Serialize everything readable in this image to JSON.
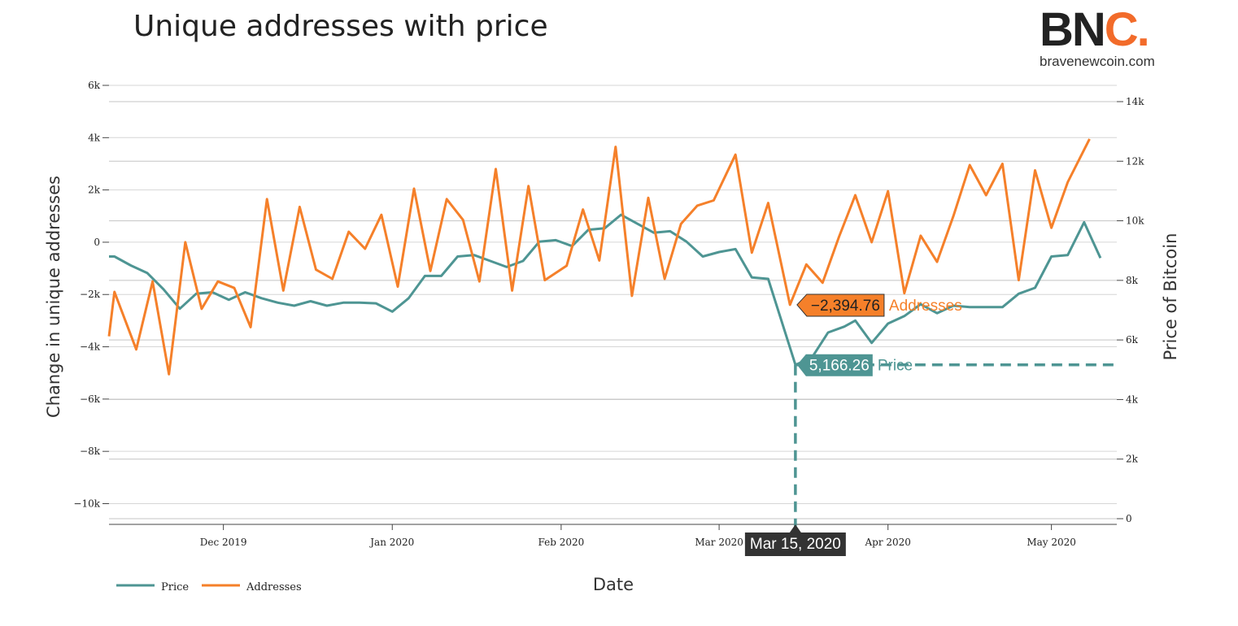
{
  "header": {
    "title": "Unique addresses with price",
    "logo_text_main": "BN",
    "logo_text_accent": "C.",
    "logo_url": "bravenewcoin.com"
  },
  "colors": {
    "price": "#4e9593",
    "addresses": "#f5802a",
    "grid": "#d6d6d6",
    "tooltip_date_bg": "#333333"
  },
  "chart_data": {
    "type": "line",
    "title": "Unique addresses with price",
    "xlabel": "Date",
    "ylabel_left": "Change in unique addresses",
    "ylabel_right": "Price of Bitcoin",
    "y_left_range": [
      -10700,
      6000
    ],
    "y_right_range": [
      0,
      14300
    ],
    "y_left_ticks": [
      {
        "v": 6000,
        "label": "6k"
      },
      {
        "v": 4000,
        "label": "4k"
      },
      {
        "v": 2000,
        "label": "2k"
      },
      {
        "v": 0,
        "label": "0"
      },
      {
        "v": -2000,
        "label": "−2k"
      },
      {
        "v": -4000,
        "label": "−4k"
      },
      {
        "v": -6000,
        "label": "−6k"
      },
      {
        "v": -8000,
        "label": "−8k"
      },
      {
        "v": -10000,
        "label": "−10k"
      }
    ],
    "y_right_ticks": [
      {
        "v": 14000,
        "label": "14k"
      },
      {
        "v": 12000,
        "label": "12k"
      },
      {
        "v": 10000,
        "label": "10k"
      },
      {
        "v": 8000,
        "label": "8k"
      },
      {
        "v": 6000,
        "label": "6k"
      },
      {
        "v": 4000,
        "label": "4k"
      },
      {
        "v": 2000,
        "label": "2k"
      },
      {
        "v": 0,
        "label": "0"
      }
    ],
    "x_range": [
      "2019-11-10",
      "2020-05-13"
    ],
    "x_ticks": [
      {
        "date": "2019-12-01",
        "label": "Dec 2019"
      },
      {
        "date": "2020-01-01",
        "label": "Jan 2020"
      },
      {
        "date": "2020-02-01",
        "label": "Feb 2020"
      },
      {
        "date": "2020-03-01",
        "label": "Mar 2020"
      },
      {
        "date": "2020-04-01",
        "label": "Apr 2020"
      },
      {
        "date": "2020-05-01",
        "label": "May 2020"
      }
    ],
    "grid": true,
    "legend_position": "bottom-left",
    "series": [
      {
        "name": "Addresses",
        "axis": "left",
        "points": [
          [
            "2019-11-10",
            -3600
          ],
          [
            "2019-11-11",
            -1900
          ],
          [
            "2019-11-15",
            -4100
          ],
          [
            "2019-11-18",
            -1500
          ],
          [
            "2019-11-21",
            -5050
          ],
          [
            "2019-11-24",
            0
          ],
          [
            "2019-11-27",
            -2550
          ],
          [
            "2019-11-30",
            -1500
          ],
          [
            "2019-12-03",
            -1750
          ],
          [
            "2019-12-06",
            -3250
          ],
          [
            "2019-12-09",
            1650
          ],
          [
            "2019-12-12",
            -1850
          ],
          [
            "2019-12-15",
            1350
          ],
          [
            "2019-12-18",
            -1050
          ],
          [
            "2019-12-21",
            -1400
          ],
          [
            "2019-12-24",
            400
          ],
          [
            "2019-12-27",
            -250
          ],
          [
            "2019-12-30",
            1050
          ],
          [
            "2020-01-02",
            -1700
          ],
          [
            "2020-01-05",
            2050
          ],
          [
            "2020-01-08",
            -1100
          ],
          [
            "2020-01-11",
            1650
          ],
          [
            "2020-01-14",
            850
          ],
          [
            "2020-01-17",
            -1500
          ],
          [
            "2020-01-20",
            2800
          ],
          [
            "2020-01-23",
            -1850
          ],
          [
            "2020-01-26",
            2150
          ],
          [
            "2020-01-29",
            -1450
          ],
          [
            "2020-02-02",
            -900
          ],
          [
            "2020-02-05",
            1250
          ],
          [
            "2020-02-08",
            -700
          ],
          [
            "2020-02-11",
            3650
          ],
          [
            "2020-02-14",
            -2050
          ],
          [
            "2020-02-17",
            1700
          ],
          [
            "2020-02-20",
            -1400
          ],
          [
            "2020-02-23",
            700
          ],
          [
            "2020-02-26",
            1400
          ],
          [
            "2020-02-29",
            1600
          ],
          [
            "2020-03-04",
            3350
          ],
          [
            "2020-03-07",
            -400
          ],
          [
            "2020-03-10",
            1500
          ],
          [
            "2020-03-14",
            -2394.76
          ],
          [
            "2020-03-17",
            -850
          ],
          [
            "2020-03-20",
            -1550
          ],
          [
            "2020-03-23",
            200
          ],
          [
            "2020-03-26",
            1800
          ],
          [
            "2020-03-29",
            0
          ],
          [
            "2020-04-01",
            1950
          ],
          [
            "2020-04-04",
            -1950
          ],
          [
            "2020-04-07",
            250
          ],
          [
            "2020-04-10",
            -750
          ],
          [
            "2020-04-13",
            1000
          ],
          [
            "2020-04-16",
            2950
          ],
          [
            "2020-04-19",
            1800
          ],
          [
            "2020-04-22",
            3000
          ],
          [
            "2020-04-25",
            -1450
          ],
          [
            "2020-04-28",
            2750
          ],
          [
            "2020-05-01",
            550
          ],
          [
            "2020-05-04",
            2300
          ],
          [
            "2020-05-08",
            3950
          ]
        ]
      },
      {
        "name": "Price",
        "axis": "right",
        "points": [
          [
            "2019-11-10",
            8800
          ],
          [
            "2019-11-11",
            8800
          ],
          [
            "2019-11-14",
            8500
          ],
          [
            "2019-11-17",
            8250
          ],
          [
            "2019-11-20",
            7700
          ],
          [
            "2019-11-23",
            7050
          ],
          [
            "2019-11-26",
            7550
          ],
          [
            "2019-11-29",
            7600
          ],
          [
            "2019-12-02",
            7350
          ],
          [
            "2019-12-05",
            7600
          ],
          [
            "2019-12-08",
            7400
          ],
          [
            "2019-12-11",
            7250
          ],
          [
            "2019-12-14",
            7150
          ],
          [
            "2019-12-17",
            7300
          ],
          [
            "2019-12-20",
            7150
          ],
          [
            "2019-12-23",
            7250
          ],
          [
            "2019-12-26",
            7250
          ],
          [
            "2019-12-29",
            7230
          ],
          [
            "2020-01-01",
            6950
          ],
          [
            "2020-01-04",
            7400
          ],
          [
            "2020-01-07",
            8150
          ],
          [
            "2020-01-10",
            8150
          ],
          [
            "2020-01-13",
            8800
          ],
          [
            "2020-01-16",
            8850
          ],
          [
            "2020-01-19",
            8650
          ],
          [
            "2020-01-22",
            8450
          ],
          [
            "2020-01-25",
            8650
          ],
          [
            "2020-01-28",
            9300
          ],
          [
            "2020-01-31",
            9350
          ],
          [
            "2020-02-03",
            9150
          ],
          [
            "2020-02-06",
            9700
          ],
          [
            "2020-02-09",
            9750
          ],
          [
            "2020-02-12",
            10200
          ],
          [
            "2020-02-15",
            9900
          ],
          [
            "2020-02-18",
            9600
          ],
          [
            "2020-02-21",
            9650
          ],
          [
            "2020-02-24",
            9300
          ],
          [
            "2020-02-27",
            8800
          ],
          [
            "2020-03-01",
            8950
          ],
          [
            "2020-03-04",
            9050
          ],
          [
            "2020-03-07",
            8100
          ],
          [
            "2020-03-10",
            8050
          ],
          [
            "2020-03-15",
            5166.26
          ],
          [
            "2020-03-18",
            5400
          ],
          [
            "2020-03-21",
            6250
          ],
          [
            "2020-03-24",
            6450
          ],
          [
            "2020-03-26",
            6650
          ],
          [
            "2020-03-29",
            5900
          ],
          [
            "2020-04-01",
            6550
          ],
          [
            "2020-04-04",
            6800
          ],
          [
            "2020-04-07",
            7200
          ],
          [
            "2020-04-10",
            6900
          ],
          [
            "2020-04-13",
            7150
          ],
          [
            "2020-04-16",
            7100
          ],
          [
            "2020-04-19",
            7100
          ],
          [
            "2020-04-22",
            7100
          ],
          [
            "2020-04-25",
            7550
          ],
          [
            "2020-04-28",
            7750
          ],
          [
            "2020-05-01",
            8800
          ],
          [
            "2020-05-04",
            8850
          ],
          [
            "2020-05-07",
            9950
          ],
          [
            "2020-05-10",
            8750
          ]
        ]
      }
    ],
    "hover": {
      "date_label": "Mar 15, 2020",
      "date": "2020-03-15",
      "addresses_value": -2394.76,
      "addresses_label": "−2,394.76",
      "addresses_name": "Addresses",
      "price_value": 5166.26,
      "price_label": "5,166.26",
      "price_name": "Price"
    }
  },
  "legend": {
    "items": [
      {
        "name": "Price"
      },
      {
        "name": "Addresses"
      }
    ]
  }
}
